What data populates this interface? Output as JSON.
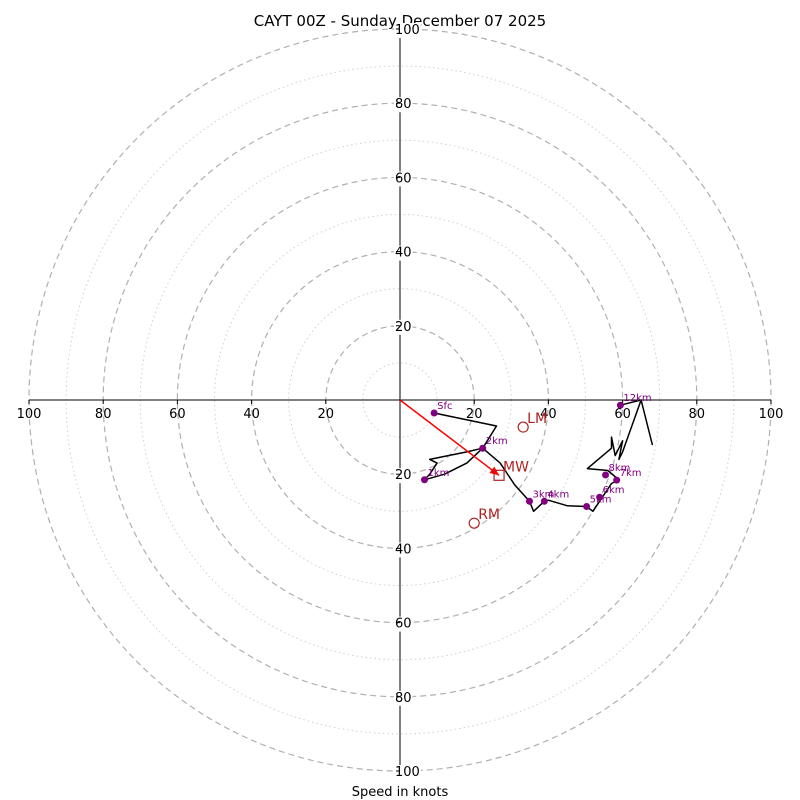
{
  "chart_data": {
    "type": "line",
    "title": "CAYT 00Z - Sunday December 07 2025",
    "xlabel": "Speed in knots",
    "axis_range": [
      -100,
      100
    ],
    "ring_major": [
      20,
      40,
      60,
      80,
      100
    ],
    "ring_minor": [
      10,
      30,
      50,
      70,
      90
    ],
    "tick_labels": {
      "x": [
        "100",
        "80",
        "60",
        "40",
        "20",
        "20",
        "40",
        "60",
        "80",
        "100"
      ],
      "y": [
        "100",
        "80",
        "60",
        "40",
        "20",
        "20",
        "40",
        "60",
        "80",
        "100"
      ]
    },
    "x_ticks": [
      -100,
      -80,
      -60,
      -40,
      -20,
      20,
      40,
      60,
      80,
      100
    ],
    "y_ticks": [
      100,
      80,
      60,
      40,
      20,
      -20,
      -40,
      -60,
      -80,
      -100
    ],
    "hodograph": [
      {
        "u": 9.2,
        "v": -3.5
      },
      {
        "u": 26.0,
        "v": -7.0
      },
      {
        "u": 22.3,
        "v": -13.0
      },
      {
        "u": 18.0,
        "v": -14.0
      },
      {
        "u": 8.0,
        "v": -16.0
      },
      {
        "u": 10.0,
        "v": -17.0
      },
      {
        "u": 8.0,
        "v": -20.0
      },
      {
        "u": 6.6,
        "v": -21.5
      },
      {
        "u": 12.0,
        "v": -20.0
      },
      {
        "u": 18.0,
        "v": -17.0
      },
      {
        "u": 22.3,
        "v": -13.0
      },
      {
        "u": 27.0,
        "v": -17.0
      },
      {
        "u": 31.0,
        "v": -23.0
      },
      {
        "u": 34.9,
        "v": -27.3
      },
      {
        "u": 36.0,
        "v": -30.0
      },
      {
        "u": 38.9,
        "v": -27.3
      },
      {
        "u": 40.0,
        "v": -27.0
      },
      {
        "u": 45.0,
        "v": -28.5
      },
      {
        "u": 50.3,
        "v": -28.7
      },
      {
        "u": 52.0,
        "v": -30.0
      },
      {
        "u": 54.0,
        "v": -27.0
      },
      {
        "u": 57.0,
        "v": -22.5
      },
      {
        "u": 59.0,
        "v": -21.5
      },
      {
        "u": 56.0,
        "v": -19.0
      },
      {
        "u": 50.5,
        "v": -18.5
      },
      {
        "u": 57.0,
        "v": -13.0
      },
      {
        "u": 57.0,
        "v": -10.0
      },
      {
        "u": 58.0,
        "v": -15.0
      },
      {
        "u": 60.0,
        "v": -11.0
      },
      {
        "u": 59.0,
        "v": -16.0
      },
      {
        "u": 60.0,
        "v": -14.0
      },
      {
        "u": 65.0,
        "v": 0.0
      },
      {
        "u": 68.0,
        "v": -12.0
      },
      {
        "u": 65.0,
        "v": 0.0
      },
      {
        "u": 59.4,
        "v": -1.4
      }
    ],
    "height_markers": [
      {
        "label": "Sfc",
        "u": 9.2,
        "v": -3.5
      },
      {
        "label": "1km",
        "u": 6.6,
        "v": -21.5
      },
      {
        "label": "2km",
        "u": 22.3,
        "v": -13.0
      },
      {
        "label": "3km",
        "u": 34.9,
        "v": -27.3
      },
      {
        "label": "4km",
        "u": 38.9,
        "v": -27.3
      },
      {
        "label": "5km",
        "u": 50.3,
        "v": -28.7
      },
      {
        "label": "6km",
        "u": 53.8,
        "v": -26.2
      },
      {
        "label": "7km",
        "u": 58.4,
        "v": -21.6
      },
      {
        "label": "8km",
        "u": 55.4,
        "v": -20.2
      },
      {
        "label": "12km",
        "u": 59.4,
        "v": -1.4
      }
    ],
    "motion_markers": [
      {
        "label": "LM",
        "u": 33.2,
        "v": -7.3,
        "shape": "circle"
      },
      {
        "label": "MW",
        "u": 26.7,
        "v": -20.3,
        "shape": "square"
      },
      {
        "label": "RM",
        "u": 20.0,
        "v": -33.2,
        "shape": "circle"
      }
    ],
    "storm_vector": {
      "from": [
        0,
        0
      ],
      "to": [
        26.7,
        -20.3
      ]
    },
    "colors": {
      "hodograph": "#000000",
      "height_marker": "#800080",
      "motion": "#b22222",
      "vector": "#ff0000",
      "ring": "#b0b0b0"
    }
  }
}
